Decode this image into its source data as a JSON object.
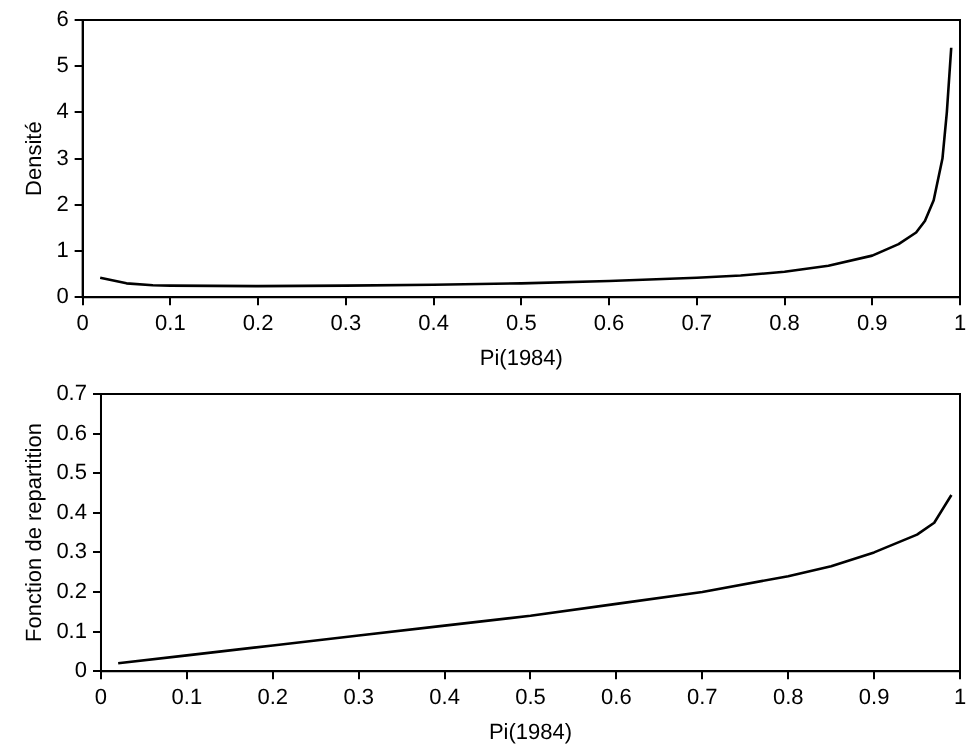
{
  "chart_data": [
    {
      "type": "line",
      "xlabel": "Pi(1984)",
      "ylabel": "Densité",
      "color": "#000000",
      "xlim": [
        0,
        1
      ],
      "xticks": [
        0,
        0.1,
        0.2,
        0.3,
        0.4,
        0.5,
        0.6,
        0.7,
        0.8,
        0.9,
        1
      ],
      "ylim": [
        0,
        6
      ],
      "yticks": [
        0,
        1,
        2,
        3,
        4,
        5,
        6
      ],
      "marker": "none",
      "x": [
        0.02,
        0.05,
        0.08,
        0.1,
        0.2,
        0.3,
        0.4,
        0.5,
        0.6,
        0.7,
        0.75,
        0.8,
        0.85,
        0.9,
        0.93,
        0.95,
        0.96,
        0.97,
        0.98,
        0.985,
        0.99
      ],
      "values": [
        0.42,
        0.3,
        0.26,
        0.25,
        0.24,
        0.25,
        0.27,
        0.3,
        0.35,
        0.42,
        0.47,
        0.55,
        0.68,
        0.9,
        1.15,
        1.4,
        1.65,
        2.1,
        3.0,
        4.0,
        5.4
      ]
    },
    {
      "type": "line",
      "xlabel": "Pi(1984)",
      "ylabel": "Fonction de repartition",
      "color": "#000000",
      "xlim": [
        0,
        1
      ],
      "xticks": [
        0,
        0.1,
        0.2,
        0.3,
        0.4,
        0.5,
        0.6,
        0.7,
        0.8,
        0.9,
        1
      ],
      "ylim": [
        0,
        0.7
      ],
      "yticks": [
        0,
        0.1,
        0.2,
        0.3,
        0.4,
        0.5,
        0.6,
        0.7
      ],
      "marker": "none",
      "x": [
        0.02,
        0.1,
        0.2,
        0.3,
        0.4,
        0.5,
        0.6,
        0.7,
        0.8,
        0.85,
        0.9,
        0.95,
        0.97,
        0.99
      ],
      "values": [
        0.02,
        0.04,
        0.065,
        0.09,
        0.115,
        0.14,
        0.17,
        0.2,
        0.24,
        0.265,
        0.3,
        0.345,
        0.375,
        0.445
      ]
    }
  ]
}
